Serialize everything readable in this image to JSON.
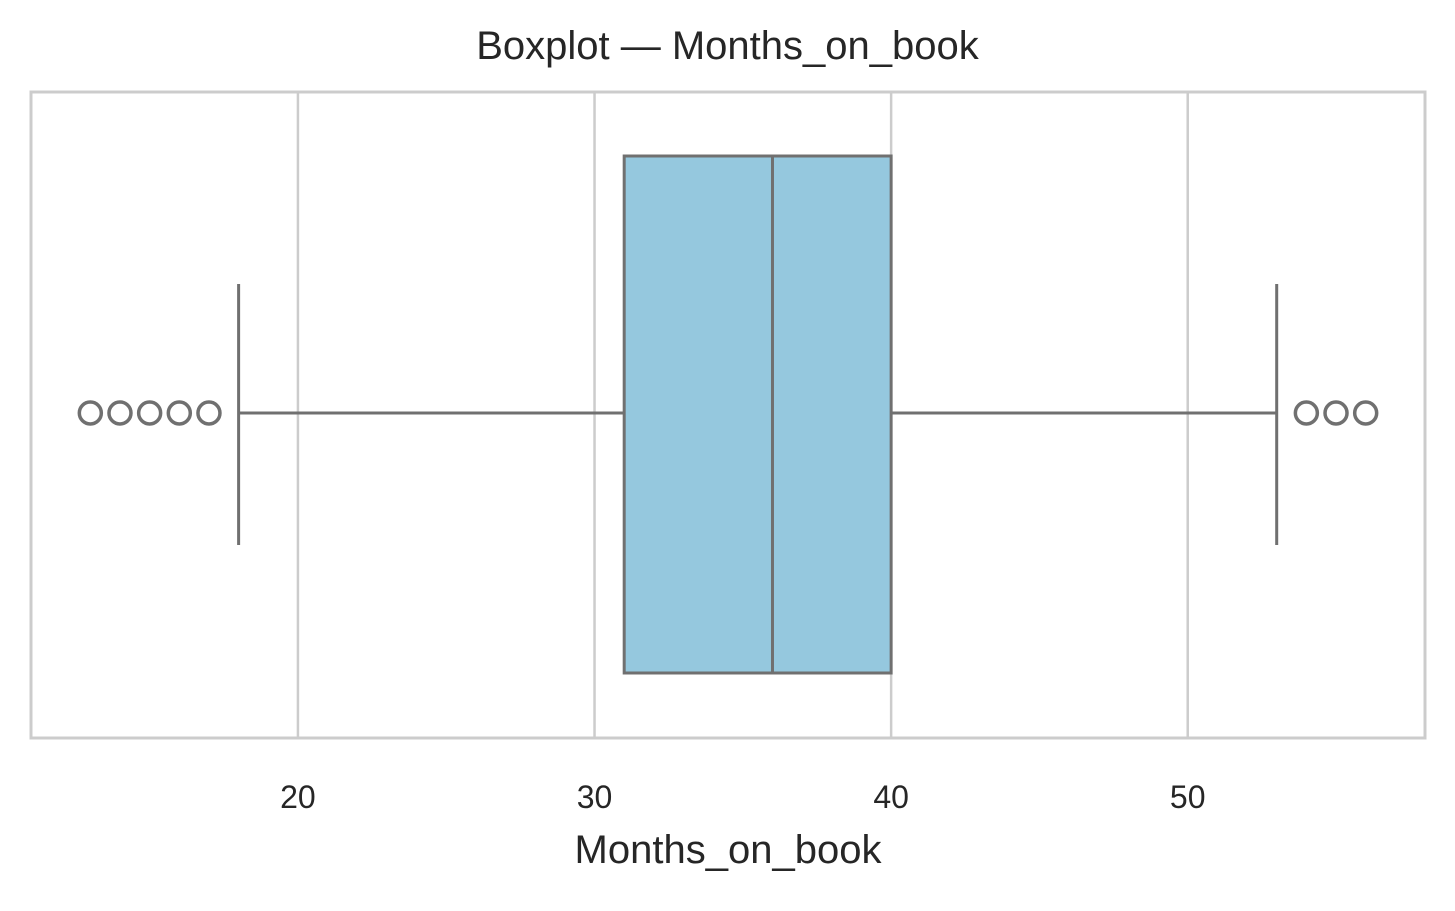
{
  "chart_data": {
    "type": "box",
    "title": "Boxplot — Months_on_book",
    "xlabel": "Months_on_book",
    "ylabel": "",
    "orientation": "horizontal",
    "xlim": [
      11,
      58
    ],
    "xticks": [
      20,
      30,
      40,
      50
    ],
    "grid": true,
    "box": {
      "whisker_low": 18,
      "q1": 31,
      "median": 36,
      "q3": 40,
      "whisker_high": 53
    },
    "outliers": [
      13,
      14,
      15,
      16,
      17,
      54,
      55,
      56
    ],
    "colors": {
      "box_fill": "#95c8de",
      "box_edge": "#707070",
      "grid": "#cccccc",
      "frame": "#cccccc"
    }
  }
}
